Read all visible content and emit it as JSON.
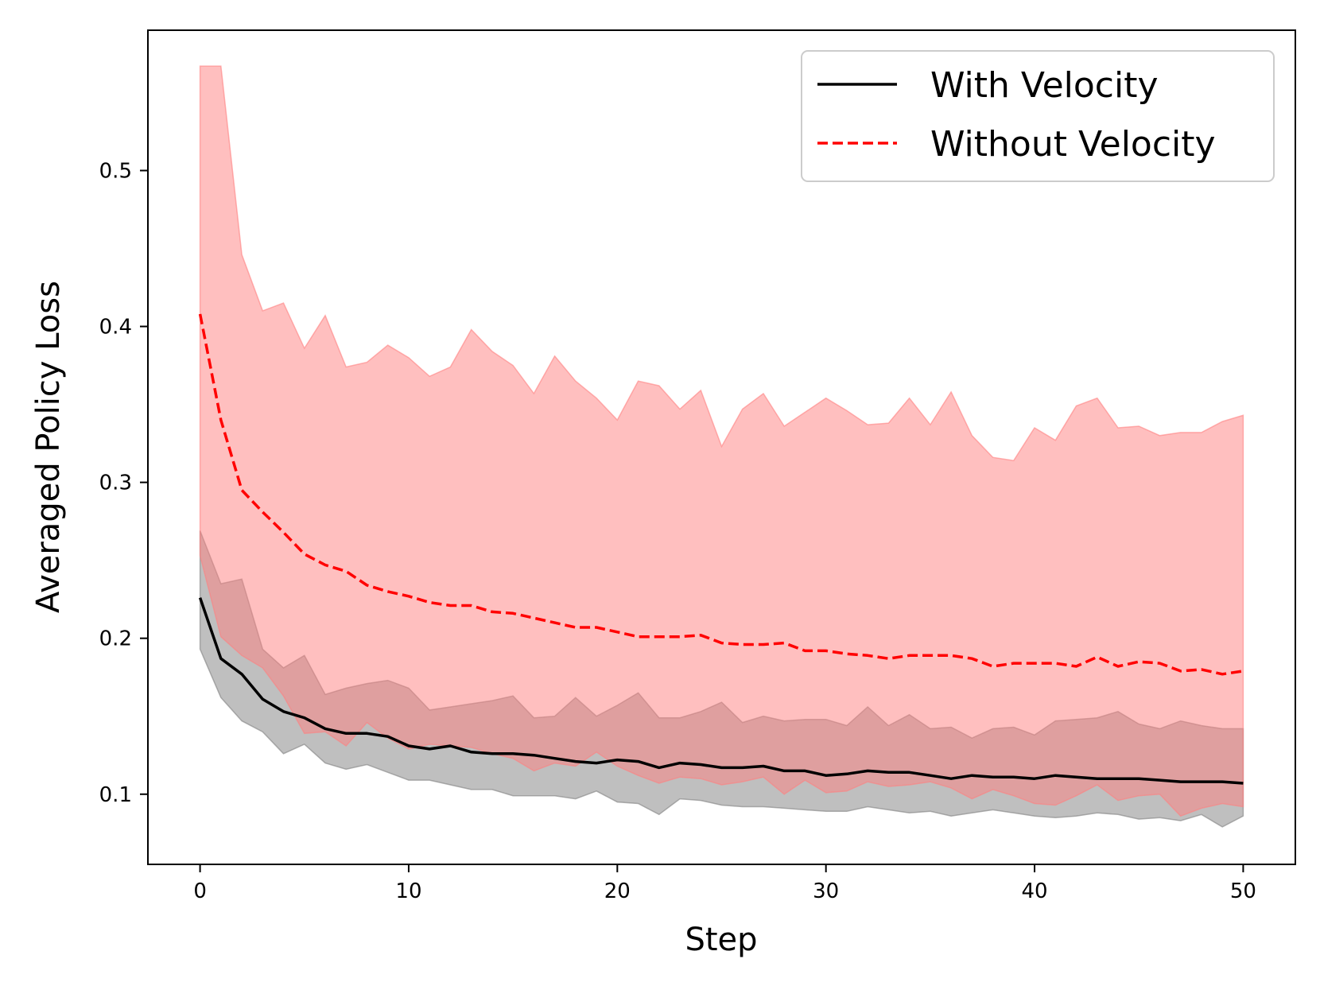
{
  "chart_data": {
    "type": "line",
    "title": "",
    "xlabel": "Step",
    "ylabel": "Averaged Policy Loss",
    "xlim": [
      -2.5,
      52.5
    ],
    "ylim": [
      0.055,
      0.59
    ],
    "xticks": [
      0,
      10,
      20,
      30,
      40,
      50
    ],
    "yticks": [
      0.1,
      0.2,
      0.3,
      0.4,
      0.5
    ],
    "xtick_labels": [
      "0",
      "10",
      "20",
      "30",
      "40",
      "50"
    ],
    "ytick_labels": [
      "0.1",
      "0.2",
      "0.3",
      "0.4",
      "0.5"
    ],
    "grid": false,
    "legend_position": "top-right",
    "x": [
      0,
      1,
      2,
      3,
      4,
      5,
      6,
      7,
      8,
      9,
      10,
      11,
      12,
      13,
      14,
      15,
      16,
      17,
      18,
      19,
      20,
      21,
      22,
      23,
      24,
      25,
      26,
      27,
      28,
      29,
      30,
      31,
      32,
      33,
      34,
      35,
      36,
      37,
      38,
      39,
      40,
      41,
      42,
      43,
      44,
      45,
      46,
      47,
      48,
      49,
      50
    ],
    "series": [
      {
        "name": "With Velocity",
        "color": "#000000",
        "band_color": "#808080",
        "line_style": "solid",
        "values": [
          0.226,
          0.187,
          0.177,
          0.161,
          0.153,
          0.149,
          0.142,
          0.139,
          0.139,
          0.137,
          0.131,
          0.129,
          0.131,
          0.127,
          0.126,
          0.126,
          0.125,
          0.123,
          0.121,
          0.12,
          0.122,
          0.121,
          0.117,
          0.12,
          0.119,
          0.117,
          0.117,
          0.118,
          0.115,
          0.115,
          0.112,
          0.113,
          0.115,
          0.114,
          0.114,
          0.112,
          0.11,
          0.112,
          0.111,
          0.111,
          0.11,
          0.112,
          0.111,
          0.11,
          0.11,
          0.11,
          0.109,
          0.108,
          0.108,
          0.108,
          0.107
        ],
        "upper": [
          0.269,
          0.235,
          0.238,
          0.193,
          0.181,
          0.189,
          0.164,
          0.168,
          0.171,
          0.173,
          0.168,
          0.154,
          0.156,
          0.158,
          0.16,
          0.163,
          0.149,
          0.15,
          0.162,
          0.15,
          0.157,
          0.165,
          0.149,
          0.149,
          0.153,
          0.159,
          0.146,
          0.15,
          0.147,
          0.148,
          0.148,
          0.144,
          0.156,
          0.144,
          0.151,
          0.142,
          0.143,
          0.136,
          0.142,
          0.143,
          0.138,
          0.147,
          0.148,
          0.149,
          0.153,
          0.145,
          0.142,
          0.147,
          0.144,
          0.142,
          0.142
        ],
        "lower": [
          0.193,
          0.162,
          0.147,
          0.14,
          0.126,
          0.132,
          0.12,
          0.116,
          0.119,
          0.114,
          0.109,
          0.109,
          0.106,
          0.103,
          0.103,
          0.099,
          0.099,
          0.099,
          0.097,
          0.102,
          0.095,
          0.094,
          0.087,
          0.097,
          0.096,
          0.093,
          0.092,
          0.092,
          0.091,
          0.09,
          0.089,
          0.089,
          0.092,
          0.09,
          0.088,
          0.089,
          0.086,
          0.088,
          0.09,
          0.088,
          0.086,
          0.085,
          0.086,
          0.088,
          0.087,
          0.084,
          0.085,
          0.083,
          0.087,
          0.079,
          0.086
        ]
      },
      {
        "name": "Without Velocity",
        "color": "#ff0000",
        "band_color": "#ff8080",
        "line_style": "dashed",
        "values": [
          0.408,
          0.34,
          0.295,
          0.281,
          0.268,
          0.254,
          0.247,
          0.243,
          0.234,
          0.23,
          0.227,
          0.223,
          0.221,
          0.221,
          0.217,
          0.216,
          0.213,
          0.21,
          0.207,
          0.207,
          0.204,
          0.201,
          0.201,
          0.201,
          0.202,
          0.197,
          0.196,
          0.196,
          0.197,
          0.192,
          0.192,
          0.19,
          0.189,
          0.187,
          0.189,
          0.189,
          0.189,
          0.187,
          0.182,
          0.184,
          0.184,
          0.184,
          0.182,
          0.188,
          0.182,
          0.185,
          0.184,
          0.179,
          0.18,
          0.177,
          0.179
        ],
        "upper": [
          0.567,
          0.567,
          0.446,
          0.41,
          0.415,
          0.386,
          0.407,
          0.374,
          0.377,
          0.388,
          0.38,
          0.368,
          0.374,
          0.398,
          0.384,
          0.375,
          0.357,
          0.381,
          0.365,
          0.354,
          0.34,
          0.365,
          0.362,
          0.347,
          0.359,
          0.323,
          0.347,
          0.357,
          0.336,
          0.345,
          0.354,
          0.346,
          0.337,
          0.338,
          0.354,
          0.337,
          0.358,
          0.33,
          0.316,
          0.314,
          0.335,
          0.327,
          0.349,
          0.354,
          0.335,
          0.336,
          0.33,
          0.332,
          0.332,
          0.339,
          0.343
        ],
        "lower": [
          0.253,
          0.201,
          0.189,
          0.181,
          0.163,
          0.139,
          0.14,
          0.131,
          0.146,
          0.136,
          0.129,
          0.132,
          0.131,
          0.13,
          0.126,
          0.123,
          0.115,
          0.12,
          0.118,
          0.127,
          0.118,
          0.112,
          0.107,
          0.111,
          0.11,
          0.106,
          0.108,
          0.111,
          0.1,
          0.109,
          0.101,
          0.102,
          0.108,
          0.105,
          0.106,
          0.108,
          0.104,
          0.097,
          0.103,
          0.099,
          0.094,
          0.093,
          0.099,
          0.106,
          0.096,
          0.099,
          0.1,
          0.086,
          0.091,
          0.094,
          0.092
        ]
      }
    ]
  }
}
